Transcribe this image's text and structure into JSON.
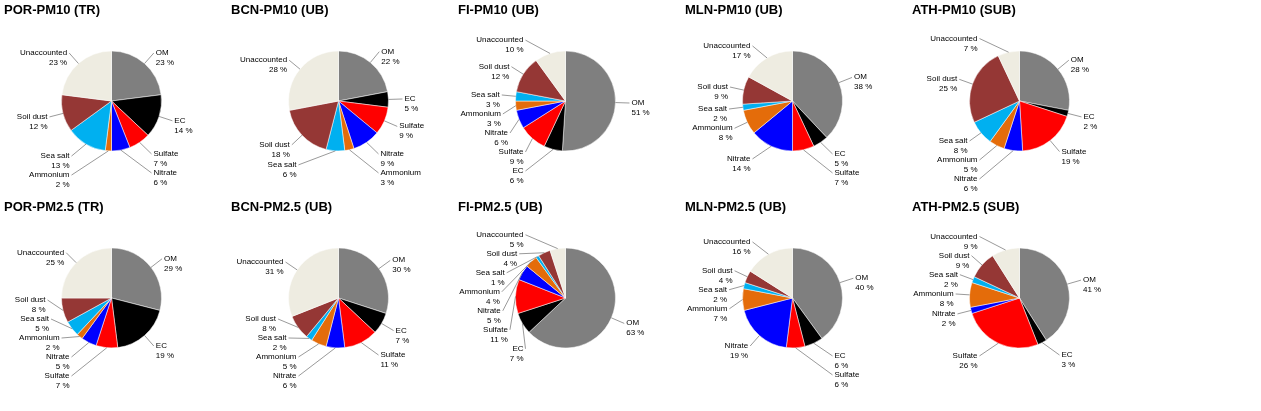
{
  "chart_data": [
    {
      "type": "pie",
      "title": "POR-PM10 (TR)",
      "categories": [
        "OM",
        "EC",
        "Sulfate",
        "Nitrate",
        "Ammonium",
        "Sea salt",
        "Soil dust",
        "Unaccounted"
      ],
      "values": [
        23,
        14,
        7,
        6,
        2,
        13,
        12,
        23
      ],
      "value_labels": [
        "23 %",
        "14 %",
        "7 %",
        "6 %",
        "2 %",
        "13 %",
        "12 %",
        "23 %"
      ],
      "colors": [
        "#7f7f7f",
        "#000000",
        "#ff0000",
        "#0000ff",
        "#e46c0a",
        "#00b0f0",
        "#953735",
        "#eeece1"
      ]
    },
    {
      "type": "pie",
      "title": "BCN-PM10 (UB)",
      "categories": [
        "OM",
        "EC",
        "Sulfate",
        "Nitrate",
        "Ammonium",
        "Sea salt",
        "Soil dust",
        "Unaccounted"
      ],
      "values": [
        22,
        5,
        9,
        9,
        3,
        6,
        18,
        28
      ],
      "value_labels": [
        "22 %",
        "5 %",
        "9 %",
        "9 %",
        "3 %",
        "6 %",
        "18 %",
        "28 %"
      ],
      "colors": [
        "#7f7f7f",
        "#000000",
        "#ff0000",
        "#0000ff",
        "#e46c0a",
        "#00b0f0",
        "#953735",
        "#eeece1"
      ]
    },
    {
      "type": "pie",
      "title": "FI-PM10 (UB)",
      "categories": [
        "OM",
        "EC",
        "Sulfate",
        "Nitrate",
        "Ammonium",
        "Sea salt",
        "Soil dust",
        "Unaccounted"
      ],
      "values": [
        51,
        6,
        9,
        6,
        3,
        3,
        12,
        10
      ],
      "value_labels": [
        "51 %",
        "6 %",
        "9 %",
        "6 %",
        "3 %",
        "3 %",
        "12 %",
        "10 %"
      ],
      "colors": [
        "#7f7f7f",
        "#000000",
        "#ff0000",
        "#0000ff",
        "#e46c0a",
        "#00b0f0",
        "#953735",
        "#eeece1"
      ]
    },
    {
      "type": "pie",
      "title": "MLN-PM10 (UB)",
      "categories": [
        "OM",
        "EC",
        "Sulfate",
        "Nitrate",
        "Ammonium",
        "Sea salt",
        "Soil dust",
        "Unaccounted"
      ],
      "values": [
        38,
        5,
        7,
        14,
        8,
        2,
        9,
        17
      ],
      "value_labels": [
        "38 %",
        "5 %",
        "7 %",
        "14 %",
        "8 %",
        "2 %",
        "9 %",
        "17 %"
      ],
      "colors": [
        "#7f7f7f",
        "#000000",
        "#ff0000",
        "#0000ff",
        "#e46c0a",
        "#00b0f0",
        "#953735",
        "#eeece1"
      ]
    },
    {
      "type": "pie",
      "title": "ATH-PM10 (SUB)",
      "categories": [
        "OM",
        "EC",
        "Sulfate",
        "Nitrate",
        "Ammonium",
        "Sea salt",
        "Soil dust",
        "Unaccounted"
      ],
      "values": [
        28,
        2,
        19,
        6,
        5,
        8,
        25,
        7
      ],
      "value_labels": [
        "28 %",
        "2 %",
        "19 %",
        "6 %",
        "5 %",
        "8 %",
        "25 %",
        "7 %"
      ],
      "colors": [
        "#7f7f7f",
        "#000000",
        "#ff0000",
        "#0000ff",
        "#e46c0a",
        "#00b0f0",
        "#953735",
        "#eeece1"
      ]
    },
    {
      "type": "pie",
      "title": "POR-PM2.5 (TR)",
      "categories": [
        "OM",
        "EC",
        "Sulfate",
        "Nitrate",
        "Ammonium",
        "Sea salt",
        "Soil dust",
        "Unaccounted"
      ],
      "values": [
        29,
        19,
        7,
        5,
        2,
        5,
        8,
        25
      ],
      "value_labels": [
        "29 %",
        "19 %",
        "7 %",
        "5 %",
        "2 %",
        "5 %",
        "8 %",
        "25 %"
      ],
      "colors": [
        "#7f7f7f",
        "#000000",
        "#ff0000",
        "#0000ff",
        "#e46c0a",
        "#00b0f0",
        "#953735",
        "#eeece1"
      ]
    },
    {
      "type": "pie",
      "title": "BCN-PM2.5 (UB)",
      "categories": [
        "OM",
        "EC",
        "Sulfate",
        "Nitrate",
        "Ammonium",
        "Sea salt",
        "Soil dust",
        "Unaccounted"
      ],
      "values": [
        30,
        7,
        11,
        6,
        5,
        2,
        8,
        31
      ],
      "value_labels": [
        "30 %",
        "7 %",
        "11 %",
        "6 %",
        "5 %",
        "2 %",
        "8 %",
        "31 %"
      ],
      "colors": [
        "#7f7f7f",
        "#000000",
        "#ff0000",
        "#0000ff",
        "#e46c0a",
        "#00b0f0",
        "#953735",
        "#eeece1"
      ]
    },
    {
      "type": "pie",
      "title": "FI-PM2.5 (UB)",
      "categories": [
        "OM",
        "EC",
        "Sulfate",
        "Nitrate",
        "Ammonium",
        "Sea salt",
        "Soil dust",
        "Unaccounted"
      ],
      "values": [
        63,
        7,
        11,
        5,
        4,
        1,
        4,
        5
      ],
      "value_labels": [
        "63 %",
        "7 %",
        "11 %",
        "5 %",
        "4 %",
        "1 %",
        "4 %",
        "5 %"
      ],
      "colors": [
        "#7f7f7f",
        "#000000",
        "#ff0000",
        "#0000ff",
        "#e46c0a",
        "#00b0f0",
        "#953735",
        "#eeece1"
      ]
    },
    {
      "type": "pie",
      "title": "MLN-PM2.5 (UB)",
      "categories": [
        "OM",
        "EC",
        "Sulfate",
        "Nitrate",
        "Ammonium",
        "Sea salt",
        "Soil dust",
        "Unaccounted"
      ],
      "values": [
        40,
        6,
        6,
        19,
        7,
        2,
        4,
        16
      ],
      "value_labels": [
        "40 %",
        "6 %",
        "6 %",
        "19 %",
        "7 %",
        "2 %",
        "4 %",
        "16 %"
      ],
      "colors": [
        "#7f7f7f",
        "#000000",
        "#ff0000",
        "#0000ff",
        "#e46c0a",
        "#00b0f0",
        "#953735",
        "#eeece1"
      ]
    },
    {
      "type": "pie",
      "title": "ATH-PM2.5 (SUB)",
      "categories": [
        "OM",
        "EC",
        "Sulfate",
        "Nitrate",
        "Ammonium",
        "Sea salt",
        "Soil dust",
        "Unaccounted"
      ],
      "values": [
        41,
        3,
        26,
        2,
        8,
        2,
        9,
        9
      ],
      "value_labels": [
        "41 %",
        "3 %",
        "26 %",
        "2 %",
        "8 %",
        "2 %",
        "9 %",
        "9 %"
      ],
      "colors": [
        "#7f7f7f",
        "#000000",
        "#ff0000",
        "#0000ff",
        "#e46c0a",
        "#00b0f0",
        "#953735",
        "#eeece1"
      ]
    }
  ]
}
